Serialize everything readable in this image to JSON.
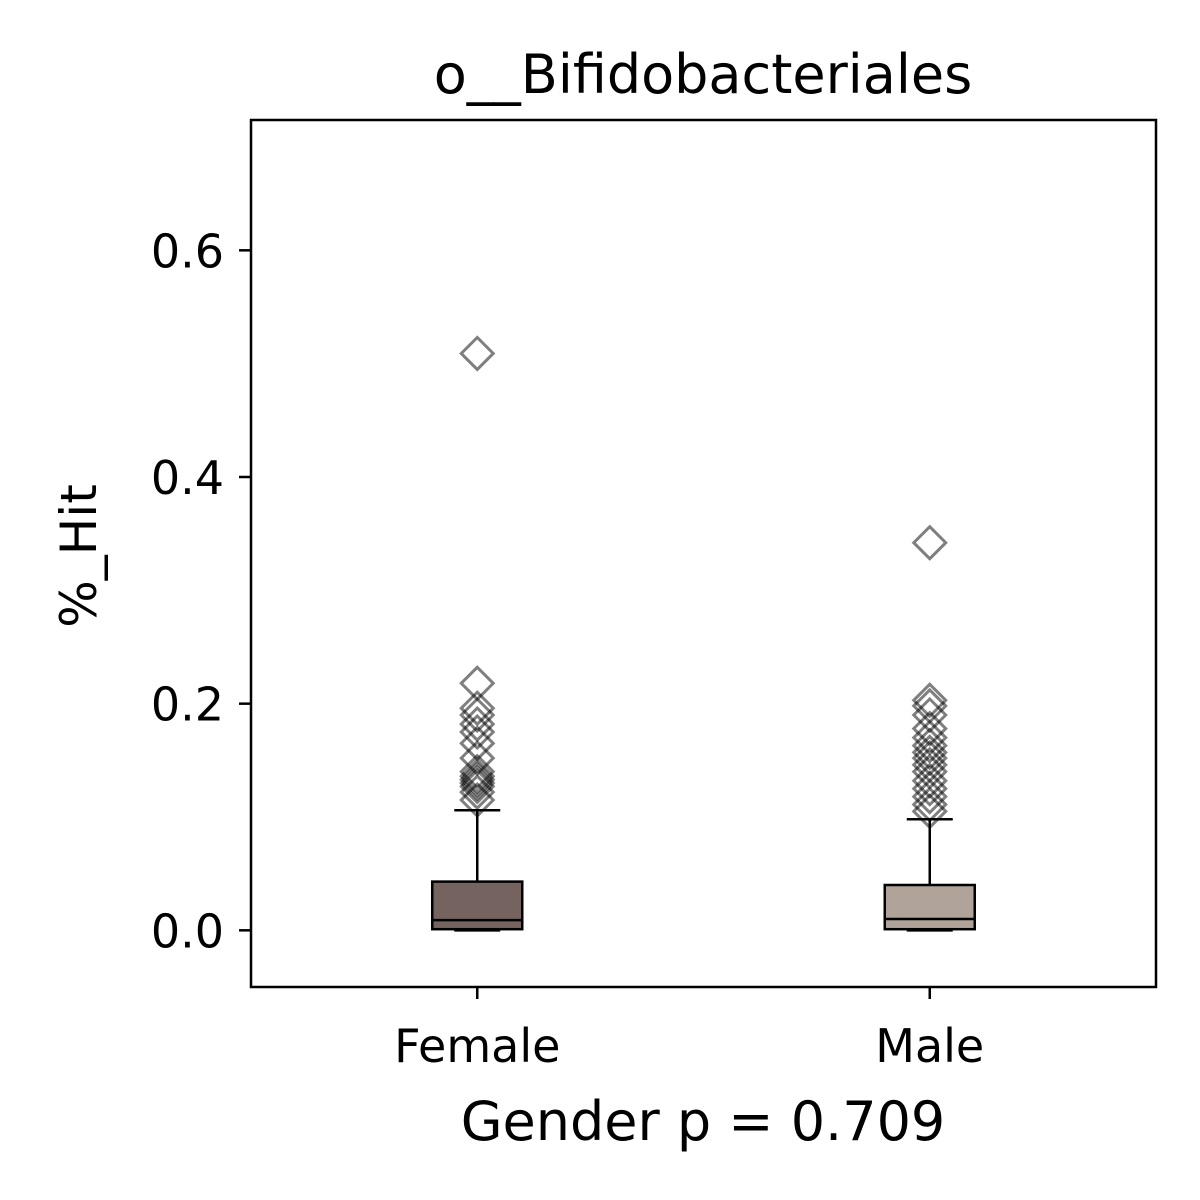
{
  "chart_data": {
    "type": "box",
    "title": "o__Bifidobacteriales",
    "xlabel": "Gender p = 0.709",
    "ylabel": "%_Hit",
    "ylim": [
      -0.05,
      0.715
    ],
    "yticks": [
      "0.0",
      "0.2",
      "0.4",
      "0.6"
    ],
    "grid": false,
    "categories": [
      "Female",
      "Male"
    ],
    "boxes": [
      {
        "category": "Female",
        "color": "#756360",
        "whisker_low": 0.0,
        "q1": 0.001,
        "median": 0.009,
        "q3": 0.043,
        "whisker_high": 0.106,
        "outliers": [
          0.115,
          0.122,
          0.127,
          0.13,
          0.133,
          0.136,
          0.14,
          0.152,
          0.165,
          0.175,
          0.182,
          0.19,
          0.196,
          0.218,
          0.509
        ]
      },
      {
        "category": "Male",
        "color": "#b0a39a",
        "whisker_low": 0.0,
        "q1": 0.001,
        "median": 0.01,
        "q3": 0.04,
        "whisker_high": 0.098,
        "outliers": [
          0.105,
          0.111,
          0.118,
          0.125,
          0.132,
          0.14,
          0.146,
          0.152,
          0.157,
          0.163,
          0.17,
          0.178,
          0.19,
          0.198,
          0.203,
          0.342
        ]
      }
    ]
  }
}
